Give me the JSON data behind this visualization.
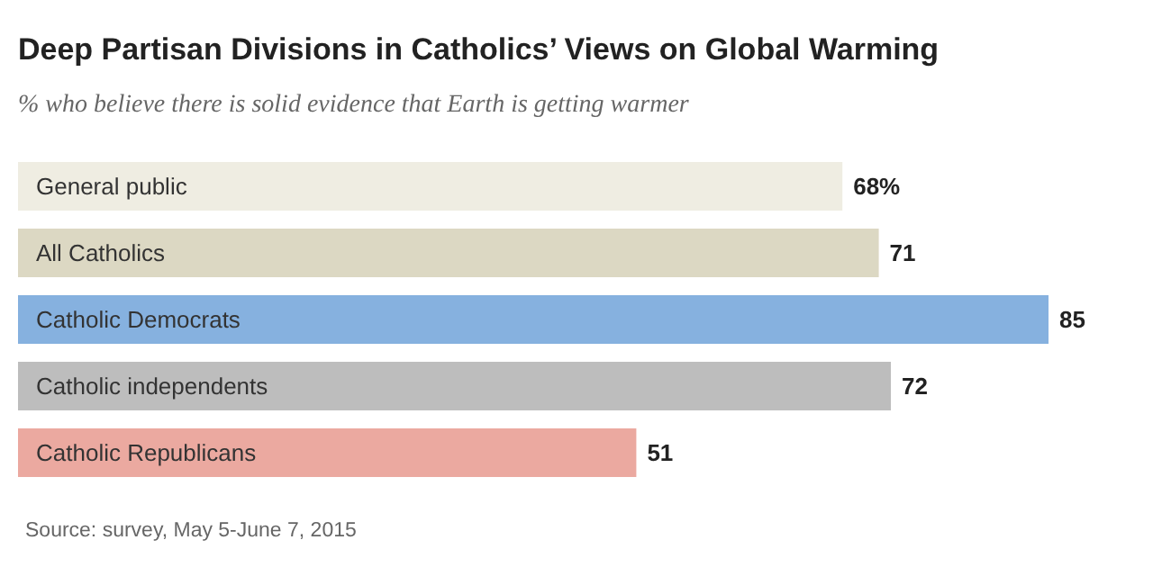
{
  "chart_data": {
    "type": "bar",
    "orientation": "horizontal",
    "title": "Deep Partisan Divisions in Catholics’ Views on Global Warming",
    "subtitle": "% who believe there is solid evidence that Earth is getting warmer",
    "categories": [
      "General public",
      "All Catholics",
      "Catholic Democrats",
      "Catholic independents",
      "Catholic Republicans"
    ],
    "values": [
      68,
      71,
      85,
      72,
      51
    ],
    "value_labels": [
      "68%",
      "71",
      "85",
      "72",
      "51"
    ],
    "colors": [
      "#efede2",
      "#dcd8c3",
      "#86b1df",
      "#bdbdbd",
      "#eba9a0"
    ],
    "annotations": [
      "Source: survey, May 5-June 7, 2015"
    ]
  }
}
